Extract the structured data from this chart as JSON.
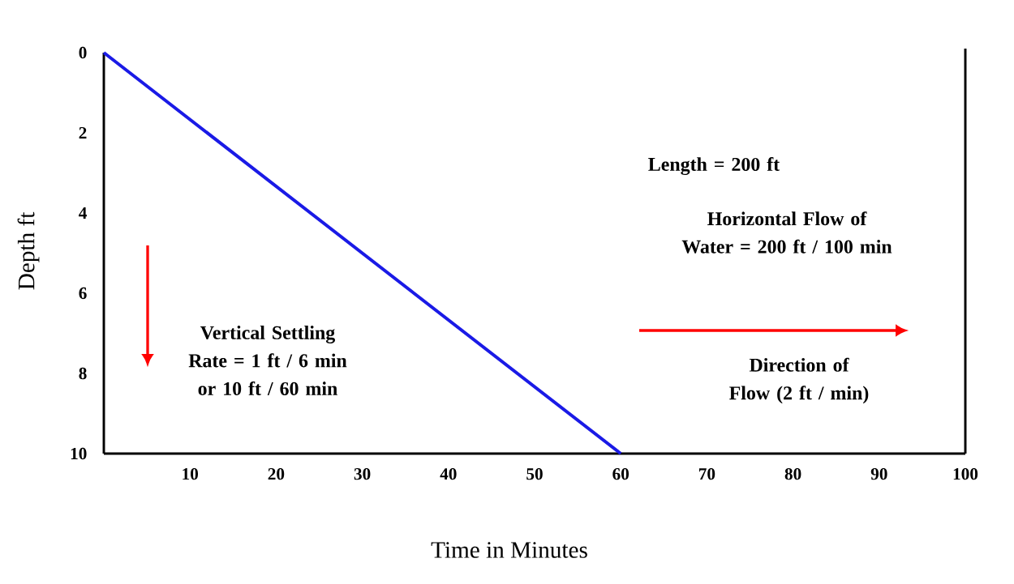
{
  "chart_data": {
    "type": "line",
    "xlabel": "Time in Minutes",
    "ylabel": "Depth ft",
    "x": [
      0,
      60
    ],
    "series": [
      {
        "color": "#1a1ae6",
        "values": [
          0,
          10
        ]
      }
    ],
    "xlim": [
      0,
      100
    ],
    "ylim": [
      10,
      0
    ],
    "xticks": [
      10,
      20,
      30,
      40,
      50,
      60,
      70,
      80,
      90,
      100
    ],
    "yticks": [
      0,
      2,
      4,
      6,
      8,
      10
    ],
    "grid": false,
    "marker": "none",
    "line_style": "solid",
    "annotations": [
      "Length = 200 ft",
      "Horizontal Flow of Water = 200 ft / 100 min",
      "Vertical Settling Rate = 1 ft / 6 min or 10 ft / 60 min",
      "Direction of Flow (2 ft / min)"
    ]
  }
}
